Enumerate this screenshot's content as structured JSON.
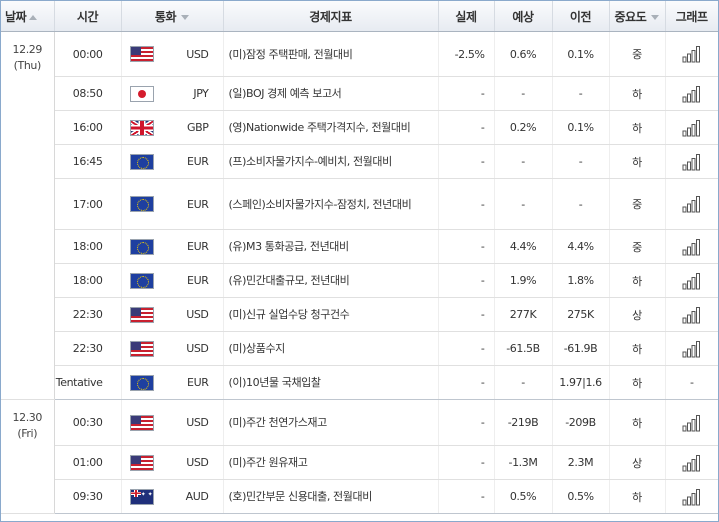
{
  "header": {
    "date": "날짜",
    "time": "시간",
    "currency": "통화",
    "event": "경제지표",
    "actual": "실제",
    "forecast": "예상",
    "previous": "이전",
    "importance": "중요도",
    "graph": "그래프"
  },
  "groups": [
    {
      "date": "12.29",
      "weekday": "(Thu)",
      "rows": [
        {
          "time": "00:00",
          "flag": "us-flag-icon",
          "currency": "USD",
          "event": "(미)잠정 주택판매, 전월대비",
          "actual": "-2.5%",
          "forecast": "0.6%",
          "previous": "0.1%",
          "importance": "중",
          "graph": true
        },
        {
          "time": "08:50",
          "flag": "japan-flag-icon",
          "currency": "JPY",
          "event": "(일)BOJ 경제 예측 보고서",
          "actual": "-",
          "forecast": "-",
          "previous": "-",
          "importance": "하",
          "graph": true
        },
        {
          "time": "16:00",
          "flag": "uk-flag-icon",
          "currency": "GBP",
          "event": "(영)Nationwide 주택가격지수, 전월대비",
          "actual": "-",
          "forecast": "0.2%",
          "previous": "0.1%",
          "importance": "하",
          "graph": true
        },
        {
          "time": "16:45",
          "flag": "eu-flag-icon",
          "currency": "EUR",
          "event": "(프)소비자물가지수-예비치, 전월대비",
          "actual": "-",
          "forecast": "-",
          "previous": "-",
          "importance": "하",
          "graph": true
        },
        {
          "time": "17:00",
          "flag": "eu-flag-icon",
          "currency": "EUR",
          "event": "(스페인)소비자물가지수-잠정치, 전년대비",
          "actual": "-",
          "forecast": "-",
          "previous": "-",
          "importance": "중",
          "graph": true
        },
        {
          "time": "18:00",
          "flag": "eu-flag-icon",
          "currency": "EUR",
          "event": "(유)M3 통화공급, 전년대비",
          "actual": "-",
          "forecast": "4.4%",
          "previous": "4.4%",
          "importance": "중",
          "graph": true
        },
        {
          "time": "18:00",
          "flag": "eu-flag-icon",
          "currency": "EUR",
          "event": "(유)민간대출규모, 전년대비",
          "actual": "-",
          "forecast": "1.9%",
          "previous": "1.8%",
          "importance": "하",
          "graph": true
        },
        {
          "time": "22:30",
          "flag": "us-flag-icon",
          "currency": "USD",
          "event": "(미)신규 실업수당 청구건수",
          "actual": "-",
          "forecast": "277K",
          "previous": "275K",
          "importance": "상",
          "graph": true
        },
        {
          "time": "22:30",
          "flag": "us-flag-icon",
          "currency": "USD",
          "event": "(미)상품수지",
          "actual": "-",
          "forecast": "-61.5B",
          "previous": "-61.9B",
          "importance": "하",
          "graph": true
        },
        {
          "time": "Tentative",
          "flag": "eu-flag-icon",
          "currency": "EUR",
          "event": "(이)10년물 국채입찰",
          "actual": "-",
          "forecast": "-",
          "previous": "1.97|1.6",
          "importance": "하",
          "graph": false,
          "graph_text": "-"
        }
      ]
    },
    {
      "date": "12.30",
      "weekday": "(Fri)",
      "rows": [
        {
          "time": "00:30",
          "flag": "us-flag-icon",
          "currency": "USD",
          "event": "(미)주간 천연가스재고",
          "actual": "-",
          "forecast": "-219B",
          "previous": "-209B",
          "importance": "하",
          "graph": true
        },
        {
          "time": "01:00",
          "flag": "us-flag-icon",
          "currency": "USD",
          "event": "(미)주간 원유재고",
          "actual": "-",
          "forecast": "-1.3M",
          "previous": "2.3M",
          "importance": "상",
          "graph": true
        },
        {
          "time": "09:30",
          "flag": "australia-flag-icon",
          "currency": "AUD",
          "event": "(호)민간부문 신용대출, 전월대비",
          "actual": "-",
          "forecast": "0.5%",
          "previous": "0.5%",
          "importance": "하",
          "graph": true
        }
      ]
    }
  ],
  "colors": {
    "header_border": "#aab4c0",
    "frame_border": "#8aa9cc",
    "row_border": "#e0e0e0",
    "graph_icon": "#555555"
  }
}
